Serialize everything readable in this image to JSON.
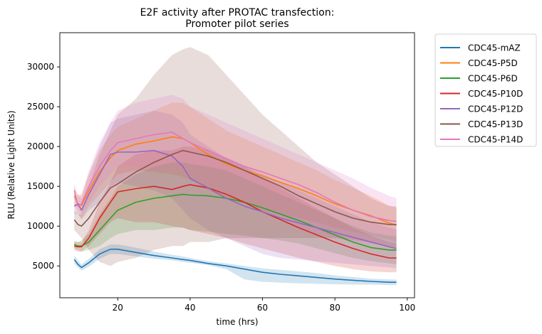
{
  "chart_data": {
    "type": "line",
    "title": "E2F activity after PROTAC transfection:",
    "subtitle": "Promoter pilot series",
    "xlabel": "time (hrs)",
    "ylabel": "RLU (Relative Light Units)",
    "xlim": [
      4,
      102
    ],
    "ylim": [
      1000,
      34300
    ],
    "x_ticks": [
      20,
      40,
      60,
      80,
      100
    ],
    "y_ticks": [
      5000,
      10000,
      15000,
      20000,
      25000,
      30000
    ],
    "x_tick_labels": [
      "20",
      "40",
      "60",
      "80",
      "100"
    ],
    "y_tick_labels": [
      "5000",
      "10000",
      "15000",
      "20000",
      "25000",
      "30000"
    ],
    "grid": false,
    "legend_position": "outside-top-right",
    "x": [
      8,
      9,
      10,
      12,
      15,
      18,
      20,
      25,
      30,
      35,
      38,
      40,
      45,
      50,
      55,
      60,
      65,
      70,
      75,
      80,
      85,
      90,
      95,
      97
    ],
    "series": [
      {
        "name": "CDC45-mAZ",
        "color": "#1f77b4",
        "values": [
          5800,
          5200,
          4800,
          5400,
          6500,
          7100,
          7100,
          6700,
          6300,
          6000,
          5800,
          5700,
          5300,
          5000,
          4600,
          4200,
          3950,
          3750,
          3550,
          3350,
          3200,
          3050,
          2950,
          2950
        ],
        "lower": [
          5300,
          4800,
          4400,
          4900,
          5900,
          6500,
          6500,
          6200,
          5900,
          5700,
          5500,
          5400,
          5100,
          4600,
          3300,
          3000,
          2900,
          2800,
          2750,
          2700,
          2650,
          2650,
          2600,
          2600
        ],
        "upper": [
          6300,
          5700,
          5200,
          5900,
          7100,
          7700,
          7700,
          7300,
          6800,
          6400,
          6200,
          6000,
          5600,
          5300,
          5000,
          4700,
          4500,
          4300,
          4100,
          3800,
          3600,
          3400,
          3300,
          3300
        ]
      },
      {
        "name": "CDC45-P5D",
        "color": "#ff7f0e",
        "values": [
          13800,
          12800,
          12600,
          14500,
          16800,
          18600,
          19500,
          20300,
          20700,
          21200,
          21000,
          20500,
          19000,
          17800,
          17000,
          16300,
          15500,
          14700,
          13800,
          12800,
          12000,
          11300,
          10400,
          10100
        ],
        "lower": [
          12500,
          11500,
          11000,
          12500,
          14000,
          15500,
          16500,
          17000,
          16800,
          16500,
          16200,
          15800,
          14500,
          13500,
          12800,
          12000,
          11500,
          11000,
          10500,
          9800,
          9300,
          8800,
          8300,
          8000
        ],
        "upper": [
          15000,
          14000,
          14000,
          16500,
          19500,
          21500,
          22500,
          23500,
          24500,
          25500,
          25500,
          25000,
          23500,
          22000,
          21000,
          20000,
          19000,
          18000,
          17000,
          15800,
          14800,
          13800,
          12600,
          12300
        ]
      },
      {
        "name": "CDC45-P6D",
        "color": "#2ca02c",
        "values": [
          7700,
          7500,
          7500,
          8000,
          9500,
          11000,
          12000,
          13000,
          13500,
          13800,
          14000,
          13900,
          13800,
          13500,
          13000,
          12300,
          11500,
          10700,
          9800,
          8900,
          8000,
          7300,
          7000,
          7000
        ],
        "lower": [
          7200,
          7000,
          6800,
          7000,
          7500,
          8500,
          9000,
          9500,
          9500,
          9800,
          9800,
          9500,
          9300,
          9000,
          8800,
          8500,
          8200,
          7800,
          7200,
          6600,
          6000,
          5600,
          5300,
          5200
        ],
        "upper": [
          8200,
          8000,
          8200,
          9000,
          11500,
          13500,
          15000,
          16500,
          17500,
          18000,
          18000,
          17800,
          17500,
          17000,
          16000,
          15000,
          14000,
          13000,
          12000,
          11000,
          10000,
          9200,
          8800,
          8700
        ]
      },
      {
        "name": "CDC45-P10D",
        "color": "#d62728",
        "values": [
          7500,
          7400,
          7400,
          8500,
          11000,
          13000,
          14300,
          14700,
          15000,
          14600,
          15000,
          15200,
          14800,
          14000,
          13000,
          11800,
          10800,
          9800,
          8900,
          8000,
          7200,
          6500,
          6000,
          6000
        ],
        "lower": [
          7000,
          6800,
          6800,
          7500,
          9000,
          10500,
          11000,
          10500,
          10500,
          10000,
          9800,
          9500,
          9000,
          8500,
          7800,
          7200,
          6600,
          6000,
          5500,
          5000,
          4600,
          4300,
          4200,
          4200
        ],
        "upper": [
          8000,
          8000,
          8000,
          9500,
          13000,
          15500,
          17500,
          19000,
          19500,
          19500,
          20000,
          20000,
          19500,
          18500,
          17500,
          16000,
          14800,
          13500,
          12200,
          11000,
          9800,
          8800,
          8000,
          7800
        ]
      },
      {
        "name": "CDC45-P12D",
        "color": "#9467bd",
        "values": [
          12500,
          12800,
          12000,
          14000,
          16500,
          19000,
          19300,
          19300,
          19500,
          18800,
          17500,
          16000,
          14800,
          13500,
          12500,
          11800,
          11000,
          10400,
          9800,
          9200,
          8600,
          8000,
          7400,
          7200
        ],
        "lower": [
          11500,
          11500,
          10800,
          12000,
          13000,
          15000,
          15500,
          15000,
          14500,
          13500,
          12000,
          11000,
          9500,
          8500,
          7500,
          6500,
          6000,
          5800,
          5600,
          5400,
          5200,
          5000,
          4800,
          4700
        ],
        "upper": [
          13500,
          14000,
          13500,
          16500,
          20000,
          23000,
          23500,
          24000,
          24500,
          24000,
          23000,
          21500,
          20000,
          18500,
          17500,
          16500,
          15500,
          14500,
          13500,
          12500,
          11500,
          10500,
          9800,
          9600
        ]
      },
      {
        "name": "CDC45-P13D",
        "color": "#8c564b",
        "values": [
          10800,
          10200,
          10000,
          11000,
          13000,
          14800,
          15300,
          16800,
          18000,
          19000,
          19500,
          19300,
          18800,
          18000,
          17000,
          16000,
          15000,
          13800,
          12800,
          11800,
          11000,
          10500,
          10200,
          10200
        ],
        "lower": [
          9500,
          9000,
          8500,
          7000,
          5500,
          5000,
          5500,
          6000,
          7000,
          7500,
          7500,
          8000,
          8000,
          8500,
          8500,
          8500,
          8500,
          8500,
          8500,
          8500,
          8300,
          8000,
          7500,
          7300
        ],
        "upper": [
          12000,
          11500,
          11500,
          15000,
          19000,
          22000,
          24000,
          26000,
          29000,
          31500,
          32200,
          32500,
          31500,
          29000,
          26500,
          24000,
          22000,
          20000,
          18000,
          16500,
          15000,
          13500,
          12500,
          12500
        ]
      },
      {
        "name": "CDC45-P14D",
        "color": "#e377c2",
        "values": [
          14500,
          12500,
          12800,
          15000,
          17500,
          19500,
          20500,
          21000,
          21500,
          21800,
          21000,
          20500,
          19500,
          18500,
          17500,
          16800,
          16000,
          15200,
          14200,
          13000,
          12000,
          11200,
          10700,
          10600
        ],
        "lower": [
          13500,
          12000,
          11500,
          13000,
          15000,
          16500,
          17500,
          17500,
          17000,
          17000,
          16500,
          16000,
          15000,
          14000,
          13000,
          12000,
          11000,
          10000,
          9000,
          8500,
          8000,
          7800,
          7500,
          7500
        ],
        "upper": [
          15500,
          13500,
          14000,
          17000,
          20500,
          23000,
          24500,
          25500,
          26000,
          26500,
          26000,
          25000,
          24000,
          23000,
          22000,
          21000,
          20000,
          19000,
          18000,
          17000,
          16000,
          14800,
          13800,
          13500
        ]
      }
    ]
  }
}
